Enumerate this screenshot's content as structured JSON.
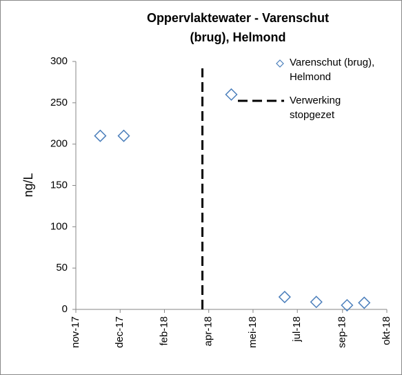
{
  "chart_data": {
    "type": "scatter",
    "title": "Oppervlaktewater - Varenschut (brug), Helmond",
    "y_label": "ng/L",
    "series": [
      {
        "name": "Varenschut (brug), Helmond",
        "color": "#4a7ebb",
        "x": [
          "2017-12-07",
          "2018-01-02",
          "2018-05-01",
          "2018-06-29",
          "2018-08-03",
          "2018-09-06",
          "2018-09-25"
        ],
        "values": [
          210,
          210,
          260,
          15,
          9,
          5,
          8
        ]
      }
    ],
    "vlines": [
      {
        "name": "Verwerking stopgezet",
        "x": "2018-03-30",
        "color": "#000000"
      }
    ],
    "xlim": [
      "2017-11-10",
      "2018-10-20"
    ],
    "xticks": [
      {
        "value": "2017-11-10",
        "label": "nov-17"
      },
      {
        "value": "2017-12-29",
        "label": "dec-17"
      },
      {
        "value": "2018-02-16",
        "label": "feb-18"
      },
      {
        "value": "2018-04-06",
        "label": "apr-18"
      },
      {
        "value": "2018-05-25",
        "label": "mei-18"
      },
      {
        "value": "2018-07-13",
        "label": "jul-18"
      },
      {
        "value": "2018-09-01",
        "label": "sep-18"
      },
      {
        "value": "2018-10-20",
        "label": "okt-18"
      }
    ],
    "ylim": [
      0,
      300
    ],
    "yticks": [
      0,
      50,
      100,
      150,
      200,
      250,
      300
    ],
    "grid": false
  }
}
